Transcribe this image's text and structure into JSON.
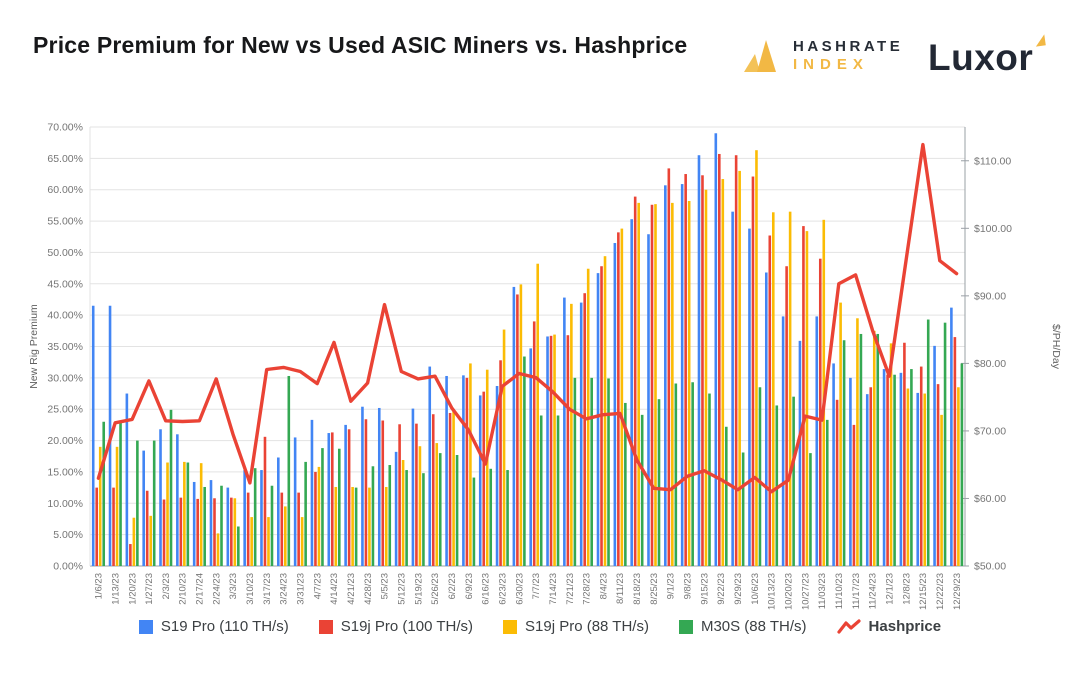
{
  "header": {
    "title": "Price Premium for New vs Used ASIC Miners vs. Hashprice",
    "brands": {
      "hashrate_index": {
        "line1": "HASHRATE",
        "line2": "INDEX",
        "gold": "#f2b844",
        "dark": "#272d36"
      },
      "luxor": {
        "wordmark": "Luxor",
        "gold": "#f2b844",
        "dark": "#222834"
      }
    }
  },
  "chart_data": {
    "type": "bar",
    "subtype": "grouped bars with overlay line, dual y-axes",
    "grid": true,
    "legend_position": "bottom",
    "categories": [
      "1/6/23",
      "1/13/23",
      "1/20/23",
      "1/27/23",
      "2/3/23",
      "2/10/23",
      "2/17/24",
      "2/24/23",
      "3/3/23",
      "3/10/23",
      "3/17/23",
      "3/24/23",
      "3/31/23",
      "4/7/23",
      "4/14/23",
      "4/21/23",
      "4/28/23",
      "5/5/23",
      "5/12/23",
      "5/19/23",
      "5/26/23",
      "6/2/23",
      "6/9/23",
      "6/16/23",
      "6/23/23",
      "6/30/23",
      "7/7/23",
      "7/14/23",
      "7/21/23",
      "7/28/23",
      "8/4/23",
      "8/11/23",
      "8/18/23",
      "8/25/23",
      "9/1/23",
      "9/8/23",
      "9/15/23",
      "9/22/23",
      "9/29/23",
      "10/6/23",
      "10/13/23",
      "10/20/23",
      "10/27/23",
      "11/03/23",
      "11/10/23",
      "11/17/23",
      "11/24/23",
      "12/1/23",
      "12/8/23",
      "12/15/23",
      "12/22/23",
      "12/29/23"
    ],
    "left_axis": {
      "title": "New Rig Premium",
      "min": 0,
      "max": 70,
      "tick_step": 5,
      "format": "percent",
      "ticks": [
        "0.00%",
        "5.00%",
        "10.00%",
        "15.00%",
        "20.00%",
        "25.00%",
        "30.00%",
        "35.00%",
        "40.00%",
        "45.00%",
        "50.00%",
        "55.00%",
        "60.00%",
        "65.00%",
        "70.00%"
      ]
    },
    "right_axis": {
      "title": "$/PH/Day",
      "min": 50,
      "max": 115,
      "tick_step": 10,
      "format": "dollar",
      "ticks": [
        "$50.00",
        "$60.00",
        "$70.00",
        "$80.00",
        "$90.00",
        "$100.00",
        "$110.00"
      ]
    },
    "series": [
      {
        "name": "S19 Pro (110 TH/s)",
        "type": "bar",
        "axis": "left",
        "color": "#4285F4",
        "values": [
          41.5,
          41.5,
          27.5,
          18.4,
          21.8,
          21.0,
          13.4,
          13.7,
          12.5,
          15.3,
          15.3,
          17.3,
          20.5,
          23.3,
          21.2,
          22.5,
          25.4,
          25.2,
          18.2,
          25.1,
          31.8,
          30.3,
          30.4,
          27.2,
          28.7,
          44.5,
          34.7,
          36.6,
          42.8,
          42.0,
          46.7,
          51.5,
          55.3,
          52.9,
          60.7,
          60.9,
          65.5,
          69.0,
          56.5,
          53.8,
          46.8,
          39.8,
          35.9,
          39.8,
          32.3,
          30.0,
          27.4,
          31.4,
          30.8,
          27.6,
          35.1,
          41.2
        ]
      },
      {
        "name": "S19j Pro (100 TH/s)",
        "type": "bar",
        "axis": "left",
        "color": "#EA4335",
        "values": [
          12.5,
          12.5,
          3.5,
          12.0,
          10.6,
          10.9,
          10.7,
          10.8,
          10.9,
          11.7,
          20.6,
          11.7,
          11.7,
          15.0,
          21.3,
          21.8,
          23.4,
          23.2,
          22.6,
          22.7,
          24.2,
          24.4,
          30.0,
          27.8,
          32.8,
          43.3,
          39.0,
          36.7,
          36.8,
          43.5,
          47.8,
          53.2,
          58.9,
          57.6,
          63.4,
          62.5,
          62.3,
          65.7,
          65.5,
          62.1,
          52.7,
          47.8,
          54.2,
          49.0,
          26.5,
          22.5,
          28.5,
          30.5,
          35.6,
          31.8,
          29.0,
          36.5
        ]
      },
      {
        "name": "S19j Pro (88 TH/s)",
        "type": "bar",
        "axis": "left",
        "color": "#FBBC04",
        "values": [
          19.0,
          19.0,
          7.7,
          8.0,
          16.5,
          16.6,
          16.4,
          5.2,
          10.8,
          7.8,
          7.8,
          9.5,
          7.8,
          15.8,
          12.6,
          12.6,
          12.5,
          12.6,
          16.9,
          19.1,
          19.6,
          25.0,
          32.3,
          31.3,
          37.7,
          44.9,
          48.2,
          36.9,
          41.8,
          47.4,
          49.4,
          53.8,
          57.9,
          57.7,
          57.9,
          58.2,
          60.0,
          61.7,
          63.0,
          66.3,
          56.4,
          56.5,
          53.4,
          55.2,
          42.0,
          39.5,
          37.5,
          35.5,
          28.3,
          27.5,
          24.1,
          28.5
        ]
      },
      {
        "name": "M30S (88 TH/s)",
        "type": "bar",
        "axis": "left",
        "color": "#34A853",
        "values": [
          23.0,
          23.0,
          20.0,
          20.0,
          24.9,
          16.5,
          12.6,
          12.8,
          6.3,
          15.6,
          12.8,
          30.3,
          16.6,
          18.8,
          18.7,
          12.5,
          15.9,
          16.1,
          15.3,
          14.8,
          18.0,
          17.7,
          14.1,
          15.5,
          15.3,
          33.4,
          24.0,
          24.0,
          30.0,
          30.0,
          29.9,
          26.0,
          24.1,
          26.6,
          29.1,
          29.3,
          27.5,
          22.2,
          18.1,
          28.5,
          25.6,
          27.0,
          18.0,
          23.3,
          36.0,
          37.0,
          37.0,
          30.5,
          31.4,
          39.3,
          38.8,
          32.3
        ]
      },
      {
        "name": "Hashprice",
        "type": "line",
        "axis": "right",
        "color": "#EA4335",
        "values": [
          63.0,
          71.2,
          71.7,
          77.4,
          71.5,
          71.4,
          71.5,
          77.7,
          69.5,
          62.3,
          79.1,
          79.4,
          78.8,
          77.0,
          83.1,
          74.4,
          77.1,
          88.7,
          78.8,
          77.7,
          78.1,
          73.4,
          70.1,
          65.1,
          76.6,
          78.5,
          77.9,
          75.8,
          73.2,
          71.8,
          72.4,
          72.6,
          65.7,
          61.5,
          61.3,
          63.3,
          64.1,
          62.8,
          61.3,
          63.1,
          61.0,
          62.7,
          72.2,
          71.6,
          91.8,
          93.1,
          84.9,
          78.1,
          95.3,
          112.4,
          95.2,
          93.3
        ]
      }
    ],
    "colors": {
      "grid": "#e3e3e3",
      "baseline": "#9aa0a6",
      "tick_text": "#757575",
      "axis_title": "#616161"
    }
  }
}
